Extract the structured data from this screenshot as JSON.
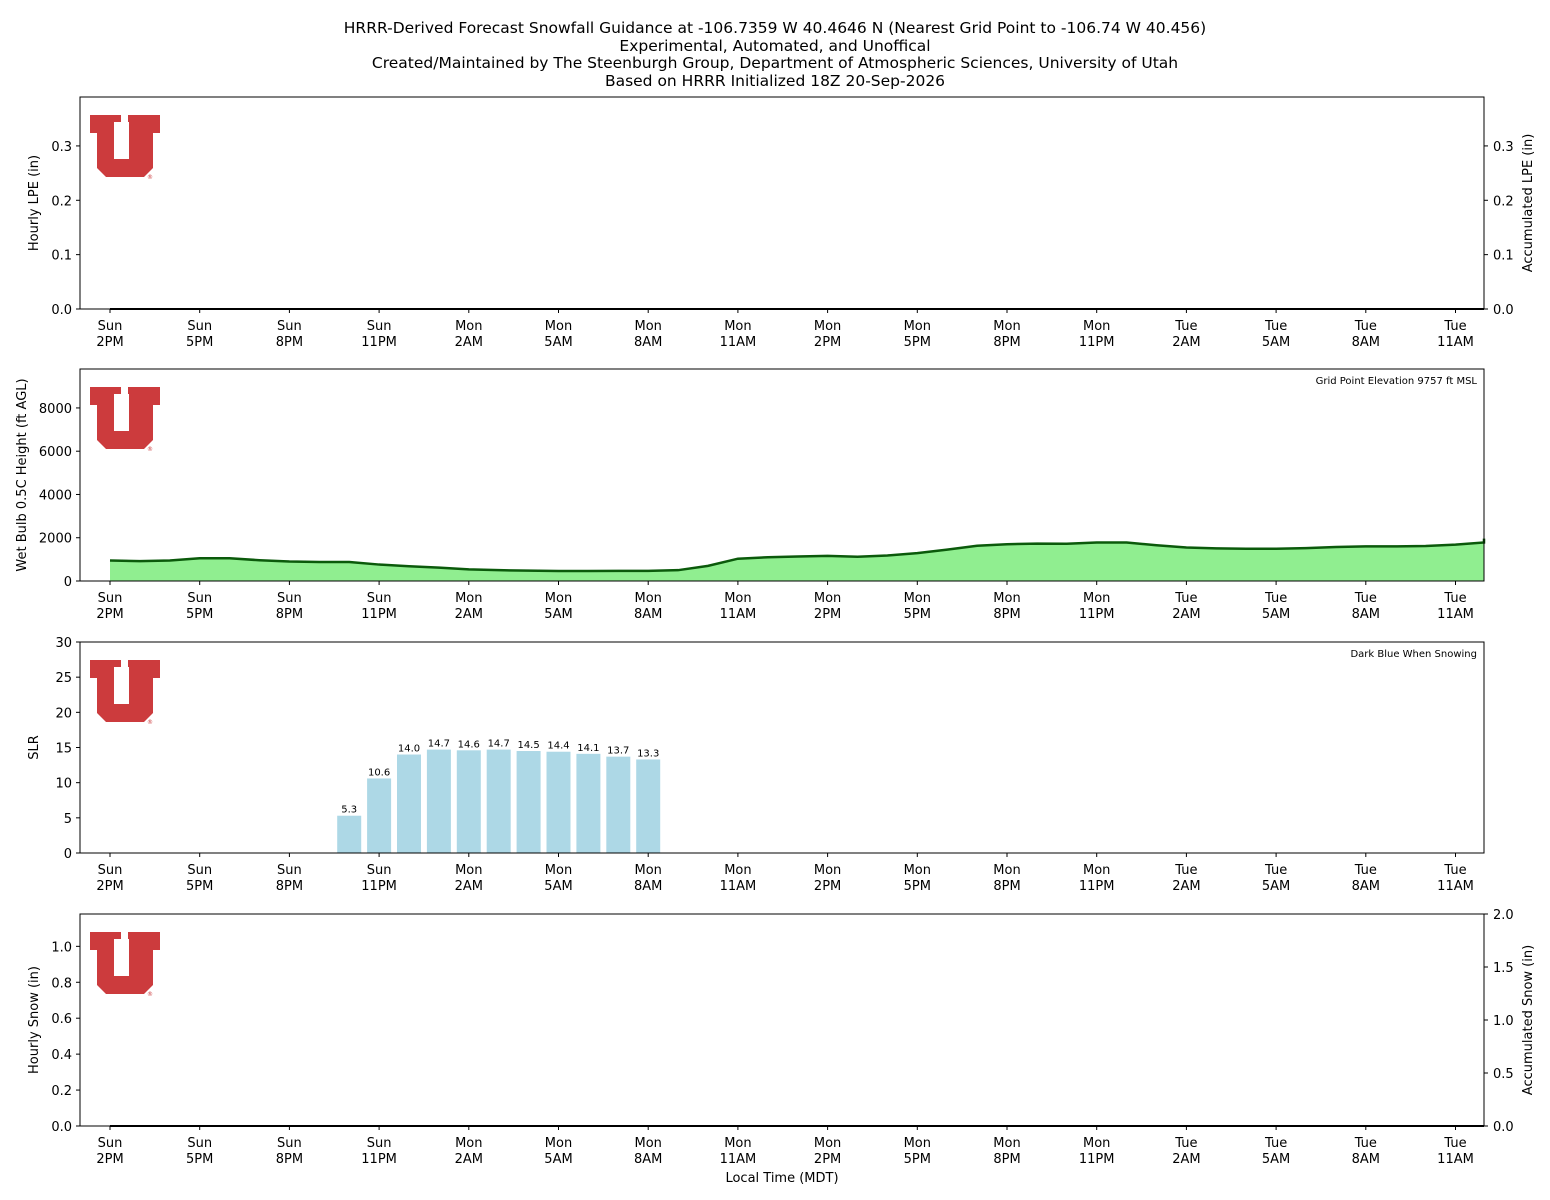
{
  "header": {
    "line1": "HRRR-Derived Forecast Snowfall Guidance at -106.7359 W 40.4646 N (Nearest Grid Point to -106.74 W 40.456)",
    "line2": "Experimental, Automated, and Unoffical",
    "line3": "Created/Maintained by The Steenburgh Group, Department of Atmospheric Sciences, University of Utah",
    "line4": "Based on HRRR Initialized 18Z 20-Sep-2026"
  },
  "colors": {
    "logo": "#cc3b3d",
    "wetbulb_fill": "#90ee90",
    "wetbulb_line": "#0b5a0b",
    "slr_bar": "#add8e6"
  },
  "chart_data": [
    {
      "id": "hourly-lpe",
      "type": "line",
      "ylabel": "Hourly LPE (in)",
      "y2label": "Accumulated LPE (in)",
      "ylim": [
        0,
        0.39
      ],
      "y2lim": [
        0,
        0.39
      ],
      "yticks": [
        "0.0",
        "0.1",
        "0.2",
        "0.3"
      ],
      "y2ticks": [
        "0.0",
        "0.1",
        "0.2",
        "0.3"
      ],
      "series": [
        {
          "values": [
            0,
            0,
            0,
            0,
            0,
            0,
            0,
            0,
            0,
            0,
            0,
            0,
            0,
            0,
            0,
            0,
            0,
            0,
            0,
            0,
            0,
            0,
            0,
            0,
            0,
            0,
            0,
            0,
            0,
            0,
            0,
            0,
            0,
            0,
            0,
            0,
            0,
            0,
            0,
            0,
            0,
            0,
            0,
            0,
            0,
            0,
            0,
            0
          ]
        }
      ]
    },
    {
      "id": "wet-bulb-height",
      "type": "area",
      "ylabel": "Wet Bulb 0.5C Height (ft AGL)",
      "annotation": "Grid Point Elevation 9757 ft MSL",
      "ylim": [
        0,
        9800
      ],
      "yticks": [
        "0",
        "2000",
        "4000",
        "6000",
        "8000"
      ],
      "series": [
        {
          "values": [
            950,
            920,
            950,
            1050,
            1050,
            960,
            900,
            880,
            880,
            760,
            680,
            620,
            540,
            500,
            480,
            460,
            460,
            470,
            470,
            500,
            700,
            1030,
            1100,
            1130,
            1160,
            1120,
            1180,
            1290,
            1450,
            1630,
            1700,
            1730,
            1720,
            1780,
            1780,
            1650,
            1550,
            1510,
            1490,
            1490,
            1520,
            1570,
            1600,
            1600,
            1620,
            1680,
            1780,
            1850,
            1960
          ]
        }
      ]
    },
    {
      "id": "slr",
      "type": "bar",
      "ylabel": "SLR",
      "annotation": "Dark Blue When Snowing",
      "ylim": [
        0,
        30
      ],
      "yticks": [
        "0",
        "5",
        "10",
        "15",
        "20",
        "25",
        "30"
      ],
      "start_hour_index": 8,
      "values": [
        5.3,
        10.6,
        14.0,
        14.7,
        14.6,
        14.7,
        14.5,
        14.4,
        14.1,
        13.7,
        13.3
      ],
      "labels": [
        "5.3",
        "10.6",
        "14.0",
        "14.7",
        "14.6",
        "14.7",
        "14.5",
        "14.4",
        "14.1",
        "13.7",
        "13.3"
      ]
    },
    {
      "id": "hourly-snow",
      "type": "line",
      "ylabel": "Hourly Snow (in)",
      "y2label": "Accumulated Snow (in)",
      "xlabel": "Local Time (MDT)",
      "ylim": [
        0,
        1.18
      ],
      "y2lim": [
        0,
        2.0
      ],
      "yticks": [
        "0.0",
        "0.2",
        "0.4",
        "0.6",
        "0.8",
        "1.0"
      ],
      "y2ticks": [
        "0.0",
        "0.5",
        "1.0",
        "1.5",
        "2.0"
      ],
      "series": [
        {
          "values": [
            0,
            0,
            0,
            0,
            0,
            0,
            0,
            0,
            0,
            0,
            0,
            0,
            0,
            0,
            0,
            0,
            0,
            0,
            0,
            0,
            0,
            0,
            0,
            0,
            0,
            0,
            0,
            0,
            0,
            0,
            0,
            0,
            0,
            0,
            0,
            0,
            0,
            0,
            0,
            0,
            0,
            0,
            0,
            0,
            0,
            0,
            0,
            0
          ]
        }
      ]
    }
  ],
  "xticks": [
    {
      "day": "Sun",
      "time": "2PM"
    },
    {
      "day": "Sun",
      "time": "5PM"
    },
    {
      "day": "Sun",
      "time": "8PM"
    },
    {
      "day": "Sun",
      "time": "11PM"
    },
    {
      "day": "Mon",
      "time": "2AM"
    },
    {
      "day": "Mon",
      "time": "5AM"
    },
    {
      "day": "Mon",
      "time": "8AM"
    },
    {
      "day": "Mon",
      "time": "11AM"
    },
    {
      "day": "Mon",
      "time": "2PM"
    },
    {
      "day": "Mon",
      "time": "5PM"
    },
    {
      "day": "Mon",
      "time": "8PM"
    },
    {
      "day": "Mon",
      "time": "11PM"
    },
    {
      "day": "Tue",
      "time": "2AM"
    },
    {
      "day": "Tue",
      "time": "5AM"
    },
    {
      "day": "Tue",
      "time": "8AM"
    },
    {
      "day": "Tue",
      "time": "11AM"
    }
  ]
}
